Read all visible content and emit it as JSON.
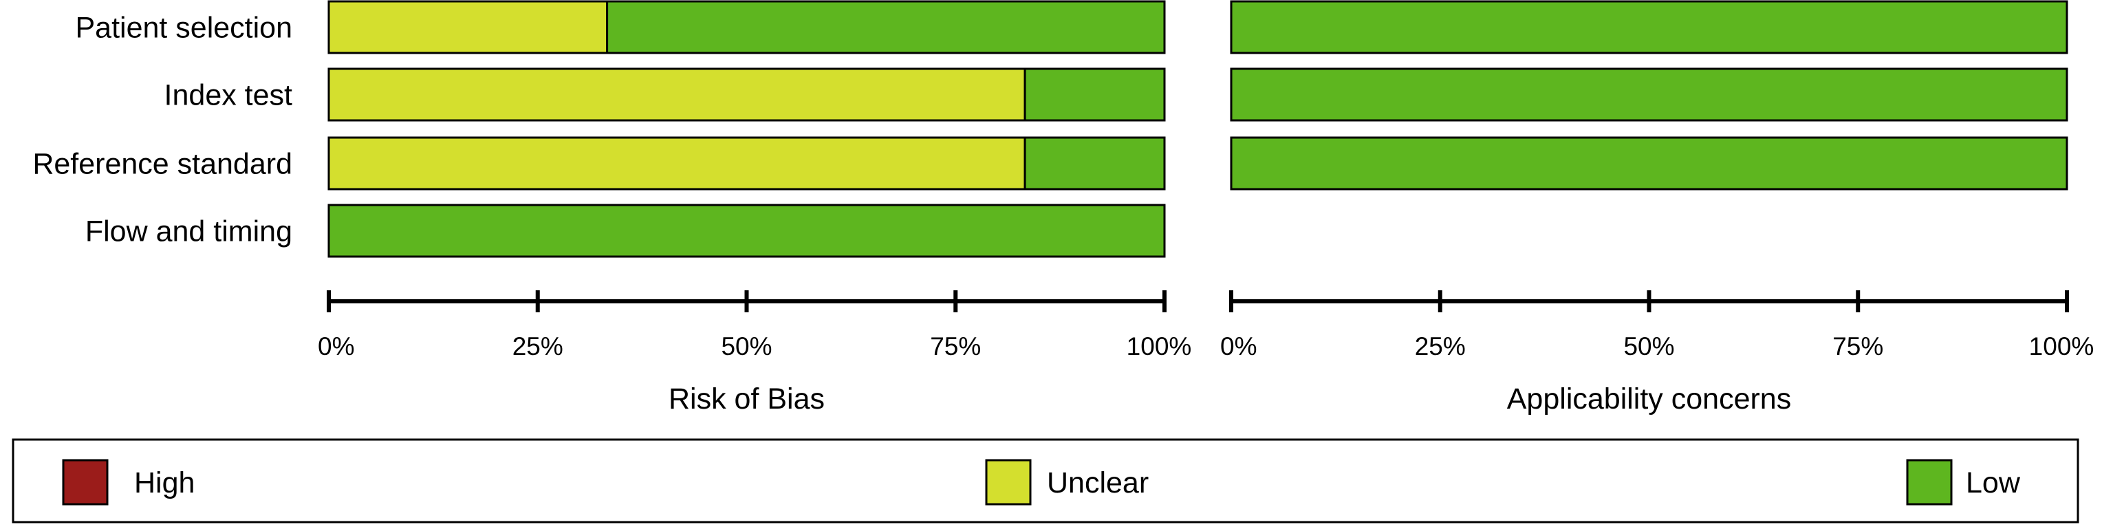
{
  "chart_data": {
    "type": "bar",
    "subtype": "stacked-horizontal-percent",
    "categories": [
      "Patient selection",
      "Index test",
      "Reference standard",
      "Flow and timing"
    ],
    "panels": [
      {
        "title": "Risk of Bias",
        "xlim": [
          0,
          100
        ],
        "ticks": [
          "0%",
          "25%",
          "50%",
          "75%",
          "100%"
        ],
        "series": [
          {
            "name": "High",
            "values": [
              0,
              0,
              0,
              0
            ]
          },
          {
            "name": "Unclear",
            "values": [
              33.3,
              83.3,
              83.3,
              0
            ]
          },
          {
            "name": "Low",
            "values": [
              66.7,
              16.7,
              16.7,
              100
            ]
          }
        ]
      },
      {
        "title": "Applicability concerns",
        "xlim": [
          0,
          100
        ],
        "ticks": [
          "0%",
          "25%",
          "50%",
          "75%",
          "100%"
        ],
        "series": [
          {
            "name": "High",
            "values": [
              0,
              0,
              0,
              null
            ]
          },
          {
            "name": "Unclear",
            "values": [
              0,
              0,
              0,
              null
            ]
          },
          {
            "name": "Low",
            "values": [
              100,
              100,
              100,
              null
            ]
          }
        ]
      }
    ],
    "legend": {
      "position": "bottom",
      "items": [
        {
          "name": "High",
          "color": "#9b1c1a"
        },
        {
          "name": "Unclear",
          "color": "#d4df2e"
        },
        {
          "name": "Low",
          "color": "#5eb61f"
        }
      ]
    },
    "grid": false
  }
}
